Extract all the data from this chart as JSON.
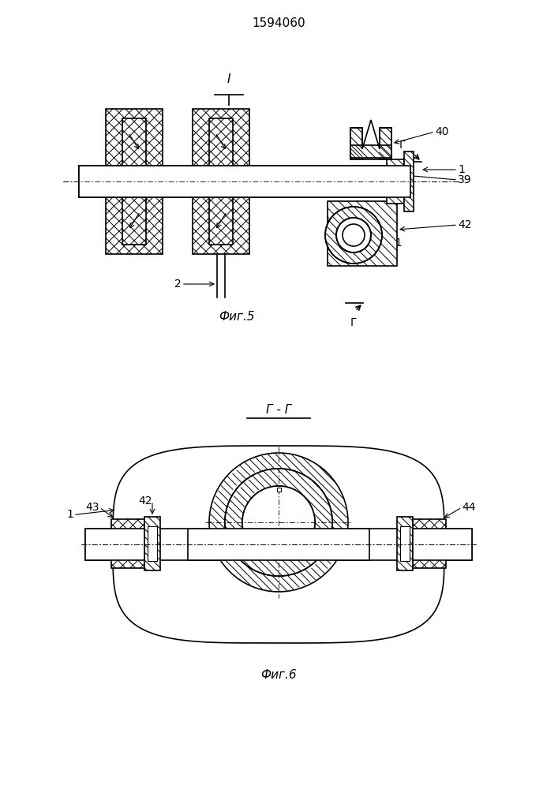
{
  "title": "1594060",
  "fig5_label": "Фиг.5",
  "fig6_label": "Фиг.6",
  "section_gg": "Г - Г",
  "bg_color": "#ffffff",
  "lc": "#000000"
}
